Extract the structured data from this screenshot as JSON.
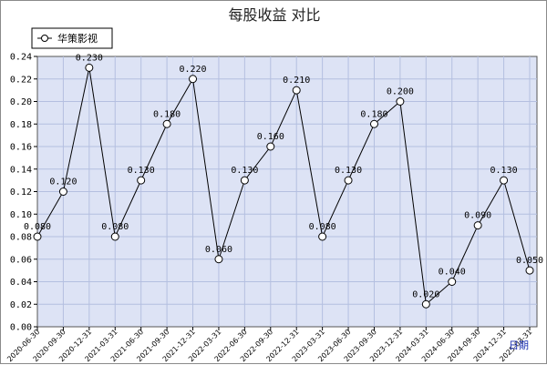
{
  "chart_data": {
    "type": "line",
    "title": "每股收益  对比",
    "xlabel": "日期",
    "ylabel": "",
    "ylim": [
      0,
      0.24
    ],
    "yticks": [
      "0.00",
      "0.02",
      "0.04",
      "0.06",
      "0.08",
      "0.10",
      "0.12",
      "0.14",
      "0.16",
      "0.18",
      "0.20",
      "0.22",
      "0.24"
    ],
    "grid": true,
    "legend_position": "top-left",
    "colors": {
      "plot_background": "#dde3f5",
      "grid": "#b4bfe0",
      "line": "#000000",
      "marker_fill": "#ffffff",
      "xlabel": "#1a2fb0"
    },
    "categories": [
      "2020-06-30",
      "2020-09-30",
      "2020-12-31",
      "2021-03-31",
      "2021-06-30",
      "2021-09-30",
      "2021-12-31",
      "2022-03-31",
      "2022-06-30",
      "2022-09-30",
      "2022-12-31",
      "2023-03-31",
      "2023-06-30",
      "2023-09-30",
      "2023-12-31",
      "2024-03-31",
      "2024-06-30",
      "2024-09-30",
      "2024-12-31",
      "2025-03-31"
    ],
    "series": [
      {
        "name": "华策影视",
        "values": [
          0.08,
          0.12,
          0.23,
          0.08,
          0.13,
          0.18,
          0.22,
          0.06,
          0.13,
          0.16,
          0.21,
          0.08,
          0.13,
          0.18,
          0.2,
          0.02,
          0.04,
          0.09,
          0.13,
          0.05
        ],
        "labels": [
          "0.080",
          "0.120",
          "0.230",
          "0.080",
          "0.130",
          "0.180",
          "0.220",
          "0.060",
          "0.130",
          "0.160",
          "0.210",
          "0.080",
          "0.130",
          "0.180",
          "0.200",
          "0.020",
          "0.040",
          "0.090",
          "0.130",
          "0.050"
        ]
      }
    ]
  }
}
